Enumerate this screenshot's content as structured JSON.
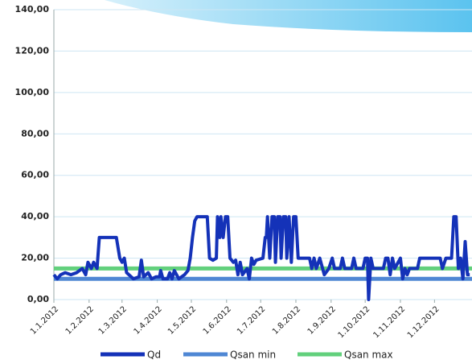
{
  "chart_data": {
    "type": "line",
    "xlim": [
      0,
      368
    ],
    "xticks": [
      {
        "value": 0,
        "label": "1.1.2012"
      },
      {
        "value": 31,
        "label": "1.2.2012"
      },
      {
        "value": 60,
        "label": "1.3.2012"
      },
      {
        "value": 91,
        "label": "1.4.2012"
      },
      {
        "value": 121,
        "label": "1.5.2012"
      },
      {
        "value": 152,
        "label": "1.6.2012"
      },
      {
        "value": 182,
        "label": "1.7.2012"
      },
      {
        "value": 213,
        "label": "1.8.2012"
      },
      {
        "value": 244,
        "label": "1.9.2012"
      },
      {
        "value": 274,
        "label": "1.10.2012"
      },
      {
        "value": 305,
        "label": "1.11.2012"
      },
      {
        "value": 335,
        "label": "1.12.2012"
      }
    ],
    "ylim": [
      0,
      140
    ],
    "yticks": [
      {
        "value": 0,
        "label": "0,00"
      },
      {
        "value": 20,
        "label": "20,00"
      },
      {
        "value": 40,
        "label": "40,00"
      },
      {
        "value": 60,
        "label": "60,00"
      },
      {
        "value": 80,
        "label": "80,00"
      },
      {
        "value": 100,
        "label": "100,00"
      },
      {
        "value": 120,
        "label": "120,00"
      },
      {
        "value": 140,
        "label": "140,00"
      }
    ],
    "grid": true,
    "legend": "bottom",
    "series": [
      {
        "name": "Qd",
        "color": "#1432b8",
        "x": [
          0,
          3,
          6,
          10,
          15,
          20,
          25,
          28,
          30,
          33,
          35,
          38,
          40,
          55,
          58,
          60,
          62,
          64,
          66,
          70,
          75,
          77,
          79,
          83,
          86,
          90,
          93,
          94,
          96,
          100,
          102,
          104,
          106,
          110,
          115,
          118,
          120,
          122,
          124,
          126,
          135,
          137,
          140,
          143,
          144,
          146,
          147,
          149,
          151,
          153,
          155,
          158,
          160,
          162,
          164,
          166,
          170,
          172,
          174,
          176,
          178,
          184,
          186,
          187,
          188,
          190,
          192,
          194,
          195,
          197,
          199,
          200,
          202,
          204,
          205,
          207,
          209,
          211,
          213,
          215,
          225,
          227,
          229,
          231,
          234,
          238,
          242,
          245,
          247,
          252,
          254,
          256,
          262,
          264,
          266,
          272,
          274,
          276,
          277,
          279,
          281,
          290,
          292,
          294,
          296,
          298,
          300,
          305,
          307,
          309,
          311,
          313,
          320,
          322,
          340,
          342,
          345,
          350,
          352,
          354,
          356,
          358,
          360,
          362,
          364,
          366
        ],
        "values": [
          12,
          10,
          12,
          13,
          12,
          13,
          15,
          12,
          18,
          15,
          18,
          15,
          30,
          30,
          20,
          18,
          20,
          13,
          12,
          10,
          11,
          19,
          11,
          13,
          10,
          11,
          11,
          14,
          10,
          10,
          13,
          10,
          14,
          10,
          12,
          14,
          20,
          30,
          38,
          40,
          40,
          20,
          19,
          20,
          40,
          30,
          40,
          30,
          40,
          40,
          20,
          18,
          19,
          12,
          18,
          12,
          15,
          10,
          20,
          17,
          19,
          20,
          30,
          30,
          40,
          20,
          40,
          40,
          18,
          40,
          40,
          20,
          40,
          40,
          20,
          40,
          18,
          40,
          40,
          20,
          20,
          15,
          20,
          15,
          20,
          12,
          15,
          20,
          15,
          15,
          20,
          15,
          15,
          20,
          15,
          15,
          20,
          20,
          0,
          20,
          15,
          15,
          20,
          20,
          12,
          20,
          15,
          20,
          10,
          15,
          12,
          15,
          15,
          20,
          20,
          15,
          20,
          20,
          40,
          40,
          15,
          20,
          10,
          28,
          12,
          12
        ]
      },
      {
        "name": "Qsan min",
        "color": "#4f87d4",
        "x": [
          0,
          368
        ],
        "values": [
          10,
          10
        ]
      },
      {
        "name": "Qsan max",
        "color": "#62d07c",
        "x": [
          0,
          368
        ],
        "values": [
          15,
          15
        ]
      }
    ]
  }
}
